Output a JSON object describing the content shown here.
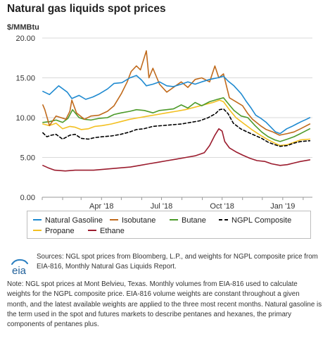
{
  "title": "Natural gas liquids spot prices",
  "unit_label": "$/MMBtu",
  "chart_data": {
    "type": "line",
    "ylim": [
      0,
      20
    ],
    "yticks": [
      "0.00",
      "5.00",
      "10.00",
      "15.00",
      "20.00"
    ],
    "x_range": [
      "2018-01-01",
      "2019-02-15"
    ],
    "xtick_labels": [
      {
        "date": "2018-04-01",
        "label": "Apr '18"
      },
      {
        "date": "2018-07-01",
        "label": "Jul '18"
      },
      {
        "date": "2018-10-01",
        "label": "Oct '18"
      },
      {
        "date": "2019-01-01",
        "label": "Jan '19"
      }
    ],
    "grid": "horizontal",
    "legend_position": "bottom",
    "series": [
      {
        "name": "Natural Gasoline",
        "color": "#1f8ad0",
        "style": "solid",
        "points": [
          [
            "2018-01-02",
            13.3
          ],
          [
            "2018-01-12",
            12.9
          ],
          [
            "2018-01-26",
            14.0
          ],
          [
            "2018-02-08",
            13.2
          ],
          [
            "2018-02-15",
            12.4
          ],
          [
            "2018-02-26",
            12.8
          ],
          [
            "2018-03-08",
            12.3
          ],
          [
            "2018-03-19",
            12.6
          ],
          [
            "2018-03-29",
            13.0
          ],
          [
            "2018-04-10",
            13.6
          ],
          [
            "2018-04-20",
            14.3
          ],
          [
            "2018-05-02",
            14.4
          ],
          [
            "2018-05-14",
            15.0
          ],
          [
            "2018-05-24",
            15.3
          ],
          [
            "2018-06-01",
            14.7
          ],
          [
            "2018-06-08",
            14.0
          ],
          [
            "2018-06-18",
            14.2
          ],
          [
            "2018-06-28",
            14.5
          ],
          [
            "2018-07-09",
            14.0
          ],
          [
            "2018-07-19",
            13.9
          ],
          [
            "2018-07-31",
            14.2
          ],
          [
            "2018-08-10",
            14.5
          ],
          [
            "2018-08-21",
            14.2
          ],
          [
            "2018-08-31",
            14.5
          ],
          [
            "2018-09-12",
            14.8
          ],
          [
            "2018-09-24",
            15.0
          ],
          [
            "2018-10-03",
            15.2
          ],
          [
            "2018-10-10",
            14.6
          ],
          [
            "2018-10-19",
            14.0
          ],
          [
            "2018-10-30",
            13.0
          ],
          [
            "2018-11-07",
            12.0
          ],
          [
            "2018-11-14",
            11.2
          ],
          [
            "2018-11-21",
            10.3
          ],
          [
            "2018-11-29",
            9.9
          ],
          [
            "2018-12-07",
            9.4
          ],
          [
            "2018-12-14",
            8.8
          ],
          [
            "2018-12-21",
            8.2
          ],
          [
            "2018-12-28",
            8.0
          ],
          [
            "2019-01-07",
            8.6
          ],
          [
            "2019-01-15",
            8.9
          ],
          [
            "2019-01-22",
            9.2
          ],
          [
            "2019-01-29",
            9.5
          ],
          [
            "2019-02-06",
            9.8
          ],
          [
            "2019-02-11",
            10.0
          ]
        ]
      },
      {
        "name": "Isobutane",
        "color": "#c06a1c",
        "style": "solid",
        "points": [
          [
            "2018-01-02",
            11.6
          ],
          [
            "2018-01-05",
            11.0
          ],
          [
            "2018-01-12",
            9.0
          ],
          [
            "2018-01-22",
            10.2
          ],
          [
            "2018-02-06",
            9.8
          ],
          [
            "2018-02-12",
            10.8
          ],
          [
            "2018-02-15",
            12.2
          ],
          [
            "2018-02-22",
            10.6
          ],
          [
            "2018-03-06",
            9.8
          ],
          [
            "2018-03-16",
            10.2
          ],
          [
            "2018-03-28",
            10.3
          ],
          [
            "2018-04-10",
            10.8
          ],
          [
            "2018-04-20",
            11.5
          ],
          [
            "2018-05-01",
            13.0
          ],
          [
            "2018-05-10",
            14.5
          ],
          [
            "2018-05-16",
            15.8
          ],
          [
            "2018-05-24",
            16.5
          ],
          [
            "2018-05-30",
            16.0
          ],
          [
            "2018-06-08",
            18.4
          ],
          [
            "2018-06-12",
            15.0
          ],
          [
            "2018-06-18",
            16.2
          ],
          [
            "2018-06-28",
            14.2
          ],
          [
            "2018-07-09",
            13.2
          ],
          [
            "2018-07-19",
            13.8
          ],
          [
            "2018-07-31",
            14.5
          ],
          [
            "2018-08-10",
            13.8
          ],
          [
            "2018-08-21",
            14.8
          ],
          [
            "2018-08-31",
            15.0
          ],
          [
            "2018-09-12",
            14.5
          ],
          [
            "2018-09-20",
            16.5
          ],
          [
            "2018-09-26",
            15.0
          ],
          [
            "2018-10-03",
            15.5
          ],
          [
            "2018-10-12",
            12.5
          ],
          [
            "2018-10-22",
            12.0
          ],
          [
            "2018-11-01",
            11.5
          ],
          [
            "2018-11-09",
            10.5
          ],
          [
            "2018-11-16",
            9.8
          ],
          [
            "2018-11-28",
            9.0
          ],
          [
            "2018-12-07",
            8.5
          ],
          [
            "2018-12-17",
            8.2
          ],
          [
            "2018-12-27",
            7.8
          ],
          [
            "2019-01-08",
            8.0
          ],
          [
            "2019-01-18",
            8.2
          ],
          [
            "2019-01-28",
            8.6
          ],
          [
            "2019-02-11",
            9.2
          ]
        ]
      },
      {
        "name": "Butane",
        "color": "#4c9a2a",
        "style": "solid",
        "points": [
          [
            "2018-01-02",
            9.4
          ],
          [
            "2018-01-12",
            9.5
          ],
          [
            "2018-01-22",
            9.7
          ],
          [
            "2018-02-01",
            9.4
          ],
          [
            "2018-02-09",
            9.9
          ],
          [
            "2018-02-16",
            11.0
          ],
          [
            "2018-02-26",
            10.0
          ],
          [
            "2018-03-06",
            9.8
          ],
          [
            "2018-03-16",
            9.7
          ],
          [
            "2018-03-28",
            9.9
          ],
          [
            "2018-04-10",
            10.0
          ],
          [
            "2018-04-20",
            10.4
          ],
          [
            "2018-05-01",
            10.6
          ],
          [
            "2018-05-14",
            10.8
          ],
          [
            "2018-05-24",
            11.0
          ],
          [
            "2018-06-05",
            10.9
          ],
          [
            "2018-06-18",
            10.6
          ],
          [
            "2018-06-28",
            10.9
          ],
          [
            "2018-07-09",
            11.0
          ],
          [
            "2018-07-19",
            11.1
          ],
          [
            "2018-07-31",
            11.6
          ],
          [
            "2018-08-10",
            11.2
          ],
          [
            "2018-08-21",
            11.9
          ],
          [
            "2018-08-31",
            11.5
          ],
          [
            "2018-09-12",
            12.0
          ],
          [
            "2018-09-24",
            12.3
          ],
          [
            "2018-10-03",
            12.5
          ],
          [
            "2018-10-10",
            11.8
          ],
          [
            "2018-10-19",
            10.9
          ],
          [
            "2018-10-30",
            10.2
          ],
          [
            "2018-11-09",
            10.0
          ],
          [
            "2018-11-20",
            9.0
          ],
          [
            "2018-11-30",
            8.2
          ],
          [
            "2018-12-10",
            7.6
          ],
          [
            "2018-12-20",
            7.2
          ],
          [
            "2018-12-28",
            7.0
          ],
          [
            "2019-01-08",
            7.3
          ],
          [
            "2019-01-18",
            7.6
          ],
          [
            "2019-01-28",
            8.0
          ],
          [
            "2019-02-11",
            8.6
          ]
        ]
      },
      {
        "name": "NGPL Composite",
        "color": "#000000",
        "style": "dashed",
        "points": [
          [
            "2018-01-02",
            8.1
          ],
          [
            "2018-01-08",
            7.6
          ],
          [
            "2018-01-15",
            7.8
          ],
          [
            "2018-01-22",
            7.9
          ],
          [
            "2018-02-01",
            7.3
          ],
          [
            "2018-02-12",
            7.8
          ],
          [
            "2018-02-20",
            7.9
          ],
          [
            "2018-03-01",
            7.4
          ],
          [
            "2018-03-12",
            7.3
          ],
          [
            "2018-03-22",
            7.5
          ],
          [
            "2018-04-02",
            7.6
          ],
          [
            "2018-04-16",
            7.7
          ],
          [
            "2018-04-30",
            7.9
          ],
          [
            "2018-05-14",
            8.2
          ],
          [
            "2018-05-24",
            8.5
          ],
          [
            "2018-06-04",
            8.6
          ],
          [
            "2018-06-18",
            8.9
          ],
          [
            "2018-07-02",
            9.0
          ],
          [
            "2018-07-16",
            9.1
          ],
          [
            "2018-07-31",
            9.2
          ],
          [
            "2018-08-14",
            9.4
          ],
          [
            "2018-08-28",
            9.6
          ],
          [
            "2018-09-10",
            10.0
          ],
          [
            "2018-09-21",
            10.5
          ],
          [
            "2018-09-27",
            11.0
          ],
          [
            "2018-10-03",
            11.1
          ],
          [
            "2018-10-10",
            10.5
          ],
          [
            "2018-10-18",
            9.3
          ],
          [
            "2018-10-29",
            8.6
          ],
          [
            "2018-11-08",
            8.2
          ],
          [
            "2018-11-19",
            7.8
          ],
          [
            "2018-11-30",
            7.4
          ],
          [
            "2018-12-10",
            6.9
          ],
          [
            "2018-12-20",
            6.6
          ],
          [
            "2018-12-28",
            6.4
          ],
          [
            "2019-01-08",
            6.5
          ],
          [
            "2019-01-18",
            6.8
          ],
          [
            "2019-01-28",
            7.0
          ],
          [
            "2019-02-11",
            7.1
          ]
        ]
      },
      {
        "name": "Propane",
        "color": "#f3c021",
        "style": "solid",
        "points": [
          [
            "2018-01-02",
            9.2
          ],
          [
            "2018-01-12",
            9.0
          ],
          [
            "2018-01-22",
            9.3
          ],
          [
            "2018-02-01",
            8.6
          ],
          [
            "2018-02-12",
            8.9
          ],
          [
            "2018-02-20",
            8.8
          ],
          [
            "2018-03-01",
            8.5
          ],
          [
            "2018-03-12",
            8.6
          ],
          [
            "2018-03-22",
            8.9
          ],
          [
            "2018-04-02",
            9.0
          ],
          [
            "2018-04-16",
            9.2
          ],
          [
            "2018-04-30",
            9.5
          ],
          [
            "2018-05-14",
            9.8
          ],
          [
            "2018-05-28",
            10.0
          ],
          [
            "2018-06-11",
            10.2
          ],
          [
            "2018-06-25",
            10.4
          ],
          [
            "2018-07-09",
            10.6
          ],
          [
            "2018-07-23",
            10.8
          ],
          [
            "2018-08-06",
            11.0
          ],
          [
            "2018-08-20",
            11.3
          ],
          [
            "2018-09-03",
            11.6
          ],
          [
            "2018-09-17",
            11.9
          ],
          [
            "2018-09-27",
            12.2
          ],
          [
            "2018-10-03",
            12.0
          ],
          [
            "2018-10-12",
            11.0
          ],
          [
            "2018-10-22",
            10.0
          ],
          [
            "2018-11-02",
            9.3
          ],
          [
            "2018-11-15",
            8.5
          ],
          [
            "2018-11-28",
            7.8
          ],
          [
            "2018-12-10",
            7.2
          ],
          [
            "2018-12-20",
            6.8
          ],
          [
            "2018-12-28",
            6.5
          ],
          [
            "2019-01-08",
            6.6
          ],
          [
            "2019-01-18",
            6.9
          ],
          [
            "2019-01-28",
            7.2
          ],
          [
            "2019-02-11",
            7.3
          ]
        ]
      },
      {
        "name": "Ethane",
        "color": "#9b1c2e",
        "style": "solid",
        "points": [
          [
            "2018-01-02",
            4.0
          ],
          [
            "2018-01-10",
            3.7
          ],
          [
            "2018-01-20",
            3.4
          ],
          [
            "2018-02-05",
            3.3
          ],
          [
            "2018-02-20",
            3.4
          ],
          [
            "2018-03-06",
            3.4
          ],
          [
            "2018-03-20",
            3.4
          ],
          [
            "2018-04-03",
            3.5
          ],
          [
            "2018-04-17",
            3.6
          ],
          [
            "2018-05-01",
            3.7
          ],
          [
            "2018-05-15",
            3.8
          ],
          [
            "2018-05-29",
            4.0
          ],
          [
            "2018-06-12",
            4.2
          ],
          [
            "2018-06-26",
            4.4
          ],
          [
            "2018-07-10",
            4.6
          ],
          [
            "2018-07-24",
            4.8
          ],
          [
            "2018-08-07",
            5.0
          ],
          [
            "2018-08-21",
            5.2
          ],
          [
            "2018-09-04",
            5.6
          ],
          [
            "2018-09-12",
            6.5
          ],
          [
            "2018-09-20",
            7.8
          ],
          [
            "2018-09-26",
            8.6
          ],
          [
            "2018-10-01",
            8.3
          ],
          [
            "2018-10-05",
            7.0
          ],
          [
            "2018-10-12",
            6.2
          ],
          [
            "2018-10-22",
            5.7
          ],
          [
            "2018-11-01",
            5.3
          ],
          [
            "2018-11-12",
            4.9
          ],
          [
            "2018-11-23",
            4.6
          ],
          [
            "2018-12-05",
            4.5
          ],
          [
            "2018-12-15",
            4.2
          ],
          [
            "2018-12-28",
            4.0
          ],
          [
            "2019-01-08",
            4.1
          ],
          [
            "2019-01-18",
            4.3
          ],
          [
            "2019-01-28",
            4.5
          ],
          [
            "2019-02-11",
            4.7
          ]
        ]
      }
    ]
  },
  "legend": [
    {
      "label": "Natural Gasoline",
      "color": "#1f8ad0",
      "style": "solid"
    },
    {
      "label": "Isobutane",
      "color": "#c06a1c",
      "style": "solid"
    },
    {
      "label": "Butane",
      "color": "#4c9a2a",
      "style": "solid"
    },
    {
      "label": "NGPL Composite",
      "color": "#000000",
      "style": "dashed"
    },
    {
      "label": "Propane",
      "color": "#f3c021",
      "style": "solid"
    },
    {
      "label": "Ethane",
      "color": "#9b1c2e",
      "style": "solid"
    }
  ],
  "logo_text": "eia",
  "sources": "Sources: NGL spot prices from Bloomberg, L.P., and weights for NGPL composite price from EIA-816, Monthly Natural Gas Liquids Report.",
  "note": "Note: NGL spot prices at Mont Belvieu, Texas. Monthly volumes from EIA-816 used to calculate weights for the NGPL composite price. EIA-816 volume weights are constant throughout a given month, and the latest available weights are applied to the three most recent months. Natural gasoline is the term used in the spot and futures markets to describe pentanes and hexanes, the primary components of pentanes plus."
}
